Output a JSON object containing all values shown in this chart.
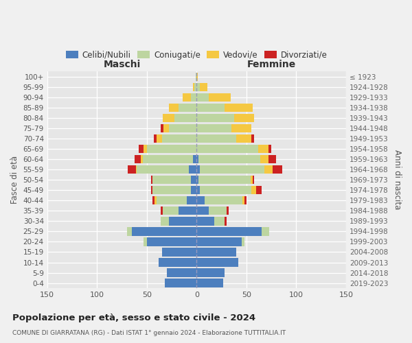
{
  "age_groups": [
    "0-4",
    "5-9",
    "10-14",
    "15-19",
    "20-24",
    "25-29",
    "30-34",
    "35-39",
    "40-44",
    "45-49",
    "50-54",
    "55-59",
    "60-64",
    "65-69",
    "70-74",
    "75-79",
    "80-84",
    "85-89",
    "90-94",
    "95-99",
    "100+"
  ],
  "birth_years": [
    "2019-2023",
    "2014-2018",
    "2009-2013",
    "2004-2008",
    "1999-2003",
    "1994-1998",
    "1989-1993",
    "1984-1988",
    "1979-1983",
    "1974-1978",
    "1969-1973",
    "1964-1968",
    "1959-1963",
    "1954-1958",
    "1949-1953",
    "1944-1948",
    "1939-1943",
    "1934-1938",
    "1929-1933",
    "1924-1928",
    "≤ 1923"
  ],
  "males": {
    "celibe": [
      32,
      30,
      38,
      35,
      50,
      65,
      28,
      18,
      10,
      6,
      6,
      8,
      4,
      0,
      0,
      0,
      0,
      0,
      0,
      0,
      0
    ],
    "coniugato": [
      0,
      0,
      0,
      0,
      3,
      5,
      8,
      16,
      30,
      38,
      38,
      52,
      50,
      50,
      35,
      28,
      22,
      18,
      6,
      2,
      1
    ],
    "vedovo": [
      0,
      0,
      0,
      0,
      0,
      0,
      0,
      0,
      2,
      0,
      0,
      1,
      2,
      3,
      5,
      5,
      12,
      10,
      8,
      2,
      0
    ],
    "divorziato": [
      0,
      0,
      0,
      0,
      0,
      0,
      0,
      2,
      2,
      2,
      2,
      8,
      6,
      5,
      3,
      3,
      0,
      0,
      0,
      0,
      0
    ]
  },
  "females": {
    "nubile": [
      27,
      28,
      42,
      40,
      45,
      65,
      18,
      12,
      8,
      3,
      2,
      3,
      2,
      0,
      0,
      0,
      0,
      0,
      0,
      0,
      0
    ],
    "coniugata": [
      0,
      0,
      0,
      0,
      3,
      8,
      10,
      18,
      38,
      52,
      52,
      65,
      62,
      62,
      40,
      35,
      38,
      28,
      12,
      3,
      0
    ],
    "vedova": [
      0,
      0,
      0,
      0,
      0,
      0,
      0,
      0,
      2,
      5,
      2,
      8,
      8,
      10,
      15,
      20,
      20,
      28,
      22,
      8,
      1
    ],
    "divorziata": [
      0,
      0,
      0,
      0,
      0,
      0,
      2,
      2,
      2,
      5,
      2,
      10,
      8,
      3,
      3,
      0,
      0,
      0,
      0,
      0,
      0
    ]
  },
  "colors": {
    "celibe": "#4d7fbe",
    "coniugato": "#bdd5a0",
    "vedovo": "#f5c842",
    "divorziato": "#cc2222"
  },
  "legend_labels": [
    "Celibi/Nubili",
    "Coniugati/e",
    "Vedovi/e",
    "Divorziati/e"
  ],
  "title": "Popolazione per età, sesso e stato civile - 2024",
  "subtitle": "COMUNE DI GIARRATANA (RG) - Dati ISTAT 1° gennaio 2024 - Elaborazione TUTTITALIA.IT",
  "label_maschi": "Maschi",
  "label_femmine": "Femmine",
  "ylabel_left": "Fasce di età",
  "ylabel_right": "Anni di nascita",
  "xlim": 150
}
